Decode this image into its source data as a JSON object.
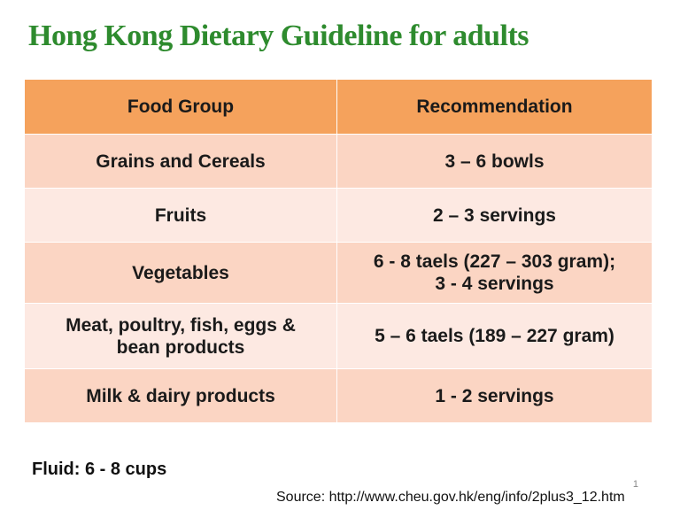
{
  "title": "Hong Kong Dietary Guideline for adults",
  "table": {
    "headers": [
      "Food Group",
      "Recommendation"
    ],
    "rows": [
      {
        "group": [
          "Grains  and Cereals"
        ],
        "rec": [
          "3 – 6 bowls"
        ]
      },
      {
        "group": [
          "Fruits"
        ],
        "rec": [
          "2 – 3 servings"
        ]
      },
      {
        "group": [
          "Vegetables"
        ],
        "rec": [
          "6 - 8 taels (227 – 303 gram);",
          "3 - 4 servings"
        ]
      },
      {
        "group": [
          "Meat, poultry, fish, eggs &",
          "bean products"
        ],
        "rec": [
          "5 – 6 taels (189 – 227 gram)"
        ]
      },
      {
        "group": [
          "Milk & dairy products"
        ],
        "rec": [
          "1 - 2 servings"
        ]
      }
    ]
  },
  "fluid": "Fluid: 6 - 8 cups",
  "page_number": "1",
  "source": "Source: http://www.cheu.gov.hk/eng/info/2plus3_12.htm",
  "colors": {
    "title": "#2e8b2e",
    "header_bg": "#f5a25c",
    "row_dark": "#fbd5c3",
    "row_light": "#fde9e2"
  }
}
